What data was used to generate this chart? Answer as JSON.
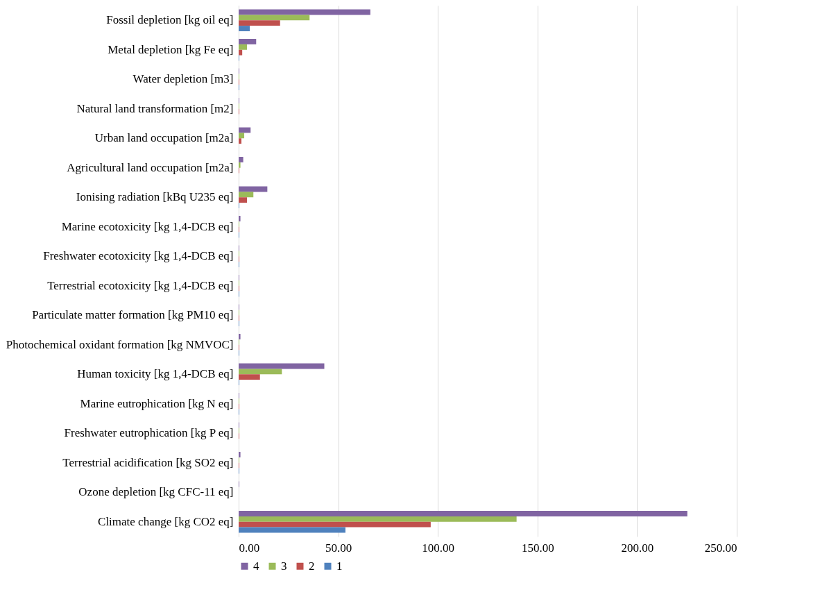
{
  "chart_data": {
    "type": "bar",
    "orientation": "horizontal",
    "categories": [
      "Fossil depletion [kg oil eq]",
      "Metal depletion [kg Fe eq]",
      "Water depletion [m3]",
      "Natural land transformation [m2]",
      "Urban land occupation [m2a]",
      "Agricultural land occupation [m2a]",
      "Ionising radiation [kBq U235 eq]",
      "Marine ecotoxicity [kg 1,4-DCB eq]",
      "Freshwater ecotoxicity [kg 1,4-DCB eq]",
      "Terrestrial ecotoxicity [kg 1,4-DCB eq]",
      "Particulate matter formation [kg PM10 eq]",
      "Photochemical oxidant formation [kg NMVOC]",
      "Human toxicity [kg 1,4-DCB eq]",
      "Marine eutrophication [kg N eq]",
      "Freshwater eutrophication [kg P eq]",
      "Terrestrial acidification [kg SO2 eq]",
      "Ozone depletion [kg CFC-11 eq]",
      "Climate change [kg CO2 eq]"
    ],
    "series": [
      {
        "name": "4",
        "color": "#8064a2",
        "values": [
          66.1,
          8.8,
          0.3,
          0.3,
          6.0,
          2.3,
          14.4,
          0.9,
          0.3,
          0.3,
          0.3,
          0.9,
          43.0,
          0.3,
          0.3,
          0.9,
          0.3,
          225.2
        ]
      },
      {
        "name": "3",
        "color": "#9bbb59",
        "values": [
          35.6,
          4.2,
          0.3,
          0.3,
          2.8,
          0.9,
          7.4,
          0.3,
          0.3,
          0.3,
          0.3,
          0.3,
          21.7,
          0.3,
          0.3,
          0.3,
          0,
          139.5
        ]
      },
      {
        "name": "2",
        "color": "#c0504d",
        "values": [
          20.8,
          1.8,
          0.3,
          0.3,
          1.4,
          0.3,
          4.2,
          0.3,
          0.3,
          0.3,
          0.3,
          0.3,
          10.7,
          0.3,
          0.3,
          0.3,
          0,
          96.4
        ]
      },
      {
        "name": "1",
        "color": "#4f81bd",
        "values": [
          5.6,
          0.3,
          0.3,
          0,
          0,
          0,
          0.3,
          0.3,
          0.3,
          0.3,
          0.3,
          0.3,
          0.3,
          0.3,
          0,
          0.3,
          0,
          53.6
        ]
      }
    ],
    "xlim": [
      0,
      250
    ],
    "xticks": [
      {
        "value": 0,
        "label": "0.00"
      },
      {
        "value": 50,
        "label": "50.00"
      },
      {
        "value": 100,
        "label": "100.00"
      },
      {
        "value": 150,
        "label": "150.00"
      },
      {
        "value": 200,
        "label": "200.00"
      },
      {
        "value": 250,
        "label": "250.00"
      }
    ],
    "grid": "x",
    "legend": "bottom"
  }
}
